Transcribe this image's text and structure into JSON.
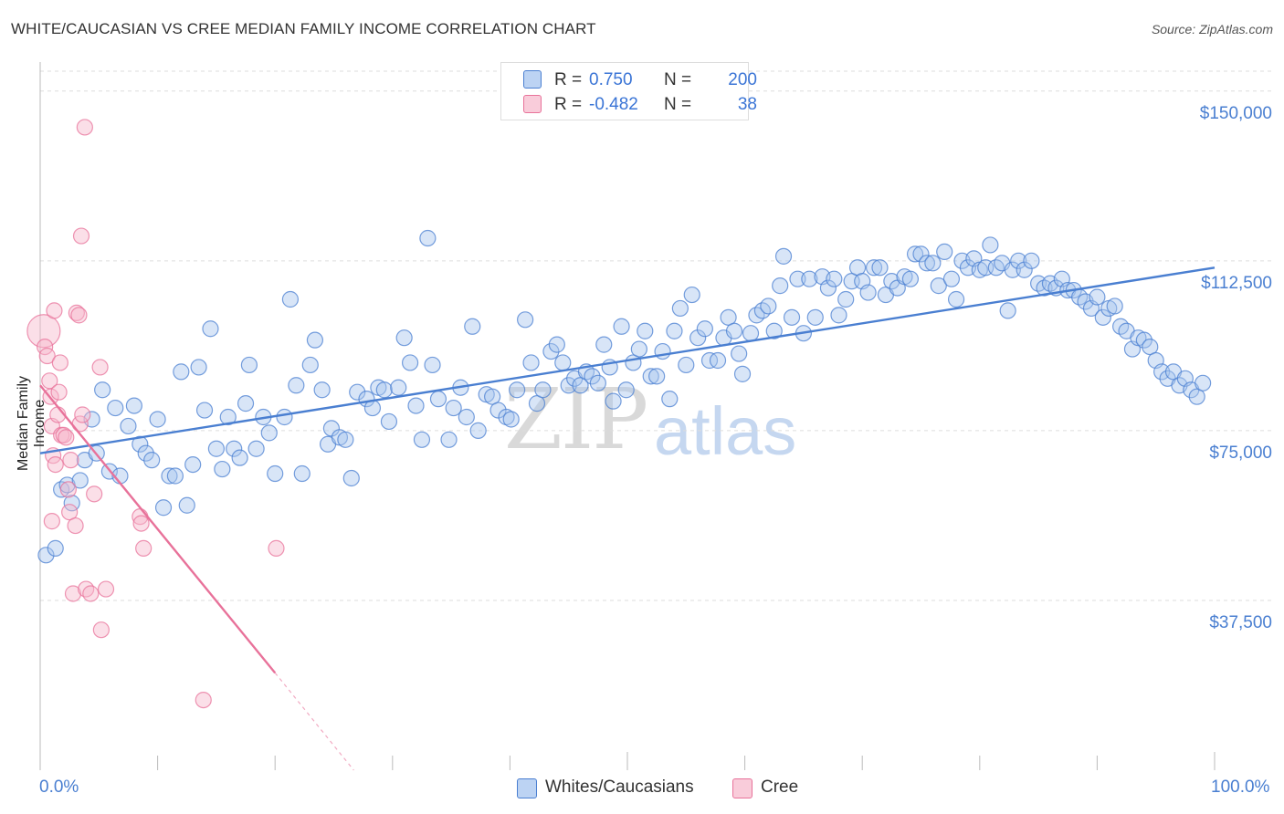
{
  "title": "WHITE/CAUCASIAN VS CREE MEDIAN FAMILY INCOME CORRELATION CHART",
  "source": "Source: ZipAtlas.com",
  "watermark": {
    "zip": "ZIP",
    "atlas": "atlas"
  },
  "colors": {
    "blue": "#4a7fd1",
    "blue_fill": "#a9c6ee",
    "pink": "#e8729a",
    "pink_fill": "#f6b8cc",
    "grid": "#dddddd"
  },
  "legend": {
    "rows": [
      {
        "r_label": "R =",
        "r_value": "0.750",
        "n_label": "N =",
        "n_value": "200"
      },
      {
        "r_label": "R =",
        "r_value": "-0.482",
        "n_label": "N =",
        "n_value": "38"
      }
    ]
  },
  "bottom_legend": [
    "Whites/Caucasians",
    "Cree"
  ],
  "chart_data": {
    "type": "scatter",
    "title": "WHITE/CAUCASIAN VS CREE MEDIAN FAMILY INCOME CORRELATION CHART",
    "xlabel": "",
    "ylabel": "Median Family Income",
    "xlim": [
      0,
      100
    ],
    "ylim": [
      0,
      156000
    ],
    "x_tick_labels": [
      "0.0%",
      "100.0%"
    ],
    "y_ticks": [
      37500,
      75000,
      112500,
      150000
    ],
    "y_tick_labels": [
      "$37,500",
      "$75,000",
      "$112,500",
      "$150,000"
    ],
    "grid": true,
    "legend_position": "top-center",
    "series": [
      {
        "name": "Whites/Caucasians",
        "color": "#4a7fd1",
        "r": 0.75,
        "n": 200,
        "trend": {
          "x": [
            0,
            100
          ],
          "y": [
            70000,
            111000
          ]
        },
        "points": [
          [
            0.5,
            47500
          ],
          [
            1.3,
            49000
          ],
          [
            1.8,
            62000
          ],
          [
            2.3,
            63000
          ],
          [
            2.7,
            59000
          ],
          [
            3.4,
            64000
          ],
          [
            3.8,
            68500
          ],
          [
            4.4,
            77500
          ],
          [
            4.8,
            70000
          ],
          [
            5.3,
            84000
          ],
          [
            5.9,
            66000
          ],
          [
            6.4,
            80000
          ],
          [
            6.8,
            65000
          ],
          [
            7.5,
            76000
          ],
          [
            8.0,
            80500
          ],
          [
            8.5,
            72000
          ],
          [
            9.0,
            70000
          ],
          [
            9.5,
            68500
          ],
          [
            10.0,
            77500
          ],
          [
            10.5,
            58000
          ],
          [
            11.0,
            65000
          ],
          [
            11.5,
            65000
          ],
          [
            12.0,
            88000
          ],
          [
            12.5,
            58500
          ],
          [
            13.0,
            67500
          ],
          [
            13.5,
            89000
          ],
          [
            14.0,
            79500
          ],
          [
            14.5,
            97500
          ],
          [
            15.0,
            71000
          ],
          [
            15.5,
            66500
          ],
          [
            16.0,
            78000
          ],
          [
            16.5,
            71000
          ],
          [
            17.0,
            69000
          ],
          [
            17.5,
            81000
          ],
          [
            17.8,
            89500
          ],
          [
            18.4,
            71000
          ],
          [
            19.0,
            78000
          ],
          [
            19.5,
            74500
          ],
          [
            20.0,
            65500
          ],
          [
            20.8,
            78000
          ],
          [
            21.3,
            104000
          ],
          [
            21.8,
            85000
          ],
          [
            22.3,
            65500
          ],
          [
            23.0,
            89500
          ],
          [
            23.4,
            95000
          ],
          [
            24.0,
            84000
          ],
          [
            24.5,
            72000
          ],
          [
            24.8,
            75500
          ],
          [
            25.5,
            73500
          ],
          [
            26.0,
            73000
          ],
          [
            26.5,
            64500
          ],
          [
            27.0,
            83500
          ],
          [
            27.8,
            82000
          ],
          [
            28.3,
            80000
          ],
          [
            28.8,
            84500
          ],
          [
            29.3,
            84000
          ],
          [
            29.7,
            77000
          ],
          [
            30.5,
            84500
          ],
          [
            31.0,
            95500
          ],
          [
            31.5,
            90000
          ],
          [
            32.0,
            80500
          ],
          [
            32.5,
            73000
          ],
          [
            33.0,
            117500
          ],
          [
            33.4,
            89500
          ],
          [
            33.9,
            82000
          ],
          [
            34.8,
            73000
          ],
          [
            35.2,
            80000
          ],
          [
            35.8,
            84500
          ],
          [
            36.3,
            78000
          ],
          [
            36.8,
            98000
          ],
          [
            37.3,
            75000
          ],
          [
            38.0,
            83000
          ],
          [
            38.5,
            82500
          ],
          [
            39.0,
            79500
          ],
          [
            39.7,
            78000
          ],
          [
            40.1,
            77500
          ],
          [
            40.6,
            84000
          ],
          [
            41.3,
            99500
          ],
          [
            41.8,
            90000
          ],
          [
            42.3,
            81000
          ],
          [
            42.8,
            84000
          ],
          [
            43.5,
            92500
          ],
          [
            44.0,
            94000
          ],
          [
            44.5,
            90000
          ],
          [
            45.0,
            85000
          ],
          [
            45.5,
            86500
          ],
          [
            46.0,
            85000
          ],
          [
            46.5,
            88000
          ],
          [
            47.0,
            87000
          ],
          [
            47.5,
            85500
          ],
          [
            48.0,
            94000
          ],
          [
            48.5,
            89000
          ],
          [
            48.8,
            81500
          ],
          [
            49.5,
            98000
          ],
          [
            49.9,
            84000
          ],
          [
            50.5,
            90000
          ],
          [
            51.0,
            93000
          ],
          [
            51.5,
            97000
          ],
          [
            52.0,
            87000
          ],
          [
            52.5,
            87000
          ],
          [
            53.0,
            92500
          ],
          [
            53.6,
            82000
          ],
          [
            54.0,
            97000
          ],
          [
            54.5,
            102000
          ],
          [
            55.0,
            89500
          ],
          [
            55.5,
            105000
          ],
          [
            56.0,
            95500
          ],
          [
            56.6,
            97500
          ],
          [
            57.0,
            90500
          ],
          [
            57.7,
            90500
          ],
          [
            58.2,
            95500
          ],
          [
            58.6,
            100000
          ],
          [
            59.1,
            97000
          ],
          [
            59.5,
            92000
          ],
          [
            59.8,
            87500
          ],
          [
            60.5,
            96500
          ],
          [
            61.0,
            100500
          ],
          [
            61.5,
            101500
          ],
          [
            62.0,
            102500
          ],
          [
            62.5,
            97000
          ],
          [
            63.0,
            107000
          ],
          [
            63.3,
            113500
          ],
          [
            64.0,
            100000
          ],
          [
            64.5,
            108500
          ],
          [
            65.0,
            96500
          ],
          [
            65.5,
            108500
          ],
          [
            66.0,
            100000
          ],
          [
            66.6,
            109000
          ],
          [
            67.1,
            106500
          ],
          [
            67.6,
            108500
          ],
          [
            68.0,
            100500
          ],
          [
            68.6,
            104000
          ],
          [
            69.1,
            108000
          ],
          [
            69.6,
            111000
          ],
          [
            70.0,
            108000
          ],
          [
            70.5,
            105500
          ],
          [
            71.0,
            111000
          ],
          [
            71.5,
            111000
          ],
          [
            72.0,
            105000
          ],
          [
            72.5,
            108000
          ],
          [
            73.0,
            106500
          ],
          [
            73.6,
            109000
          ],
          [
            74.1,
            108500
          ],
          [
            74.5,
            114000
          ],
          [
            75.0,
            114000
          ],
          [
            75.5,
            112000
          ],
          [
            76.0,
            112000
          ],
          [
            76.5,
            107000
          ],
          [
            77.0,
            114500
          ],
          [
            77.6,
            108500
          ],
          [
            78.0,
            104000
          ],
          [
            78.5,
            112500
          ],
          [
            79.0,
            111000
          ],
          [
            79.5,
            113000
          ],
          [
            80.0,
            110500
          ],
          [
            80.5,
            111000
          ],
          [
            80.9,
            116000
          ],
          [
            81.4,
            111000
          ],
          [
            81.9,
            112000
          ],
          [
            82.4,
            101500
          ],
          [
            82.8,
            110500
          ],
          [
            83.3,
            112500
          ],
          [
            83.8,
            110500
          ],
          [
            84.4,
            112500
          ],
          [
            85.0,
            107500
          ],
          [
            85.5,
            106500
          ],
          [
            86.0,
            107500
          ],
          [
            86.5,
            106500
          ],
          [
            87.0,
            108500
          ],
          [
            87.5,
            106000
          ],
          [
            88.0,
            106000
          ],
          [
            88.5,
            104500
          ],
          [
            89.0,
            103500
          ],
          [
            89.5,
            102000
          ],
          [
            90.0,
            104500
          ],
          [
            90.5,
            100000
          ],
          [
            91.0,
            102000
          ],
          [
            91.5,
            102500
          ],
          [
            92.0,
            98000
          ],
          [
            92.5,
            97000
          ],
          [
            93.0,
            93000
          ],
          [
            93.5,
            95500
          ],
          [
            94.0,
            95000
          ],
          [
            94.5,
            93500
          ],
          [
            95.0,
            90500
          ],
          [
            95.5,
            88000
          ],
          [
            96.0,
            86500
          ],
          [
            96.5,
            88000
          ],
          [
            97.0,
            85000
          ],
          [
            97.5,
            86500
          ],
          [
            98.0,
            84000
          ],
          [
            98.5,
            82500
          ],
          [
            99.0,
            85500
          ]
        ]
      },
      {
        "name": "Cree",
        "color": "#e8729a",
        "r": -0.482,
        "n": 38,
        "trend": {
          "x": [
            0,
            20
          ],
          "y": [
            85000,
            21500
          ]
        },
        "trend_dashed": {
          "x": [
            20,
            26.7
          ],
          "y": [
            21500,
            0
          ]
        },
        "points": [
          [
            0.3,
            97000
          ],
          [
            0.4,
            93500
          ],
          [
            0.6,
            91500
          ],
          [
            0.8,
            86000
          ],
          [
            0.9,
            82500
          ],
          [
            1.0,
            76000
          ],
          [
            1.1,
            69500
          ],
          [
            1.3,
            67500
          ],
          [
            1.2,
            101500
          ],
          [
            1.5,
            78500
          ],
          [
            1.6,
            83500
          ],
          [
            1.7,
            90000
          ],
          [
            1.8,
            74000
          ],
          [
            2.0,
            74000
          ],
          [
            2.2,
            73500
          ],
          [
            2.4,
            62000
          ],
          [
            2.5,
            57000
          ],
          [
            2.6,
            68500
          ],
          [
            2.8,
            39000
          ],
          [
            3.0,
            54000
          ],
          [
            3.1,
            101000
          ],
          [
            3.3,
            100500
          ],
          [
            3.4,
            76500
          ],
          [
            3.5,
            118000
          ],
          [
            3.6,
            78500
          ],
          [
            3.8,
            142000
          ],
          [
            3.9,
            40000
          ],
          [
            4.3,
            39000
          ],
          [
            4.6,
            61000
          ],
          [
            5.1,
            89000
          ],
          [
            5.2,
            31000
          ],
          [
            5.6,
            40000
          ],
          [
            8.5,
            56000
          ],
          [
            8.6,
            54500
          ],
          [
            8.8,
            49000
          ],
          [
            13.9,
            15500
          ],
          [
            20.1,
            49000
          ],
          [
            1.0,
            55000
          ]
        ]
      }
    ]
  }
}
